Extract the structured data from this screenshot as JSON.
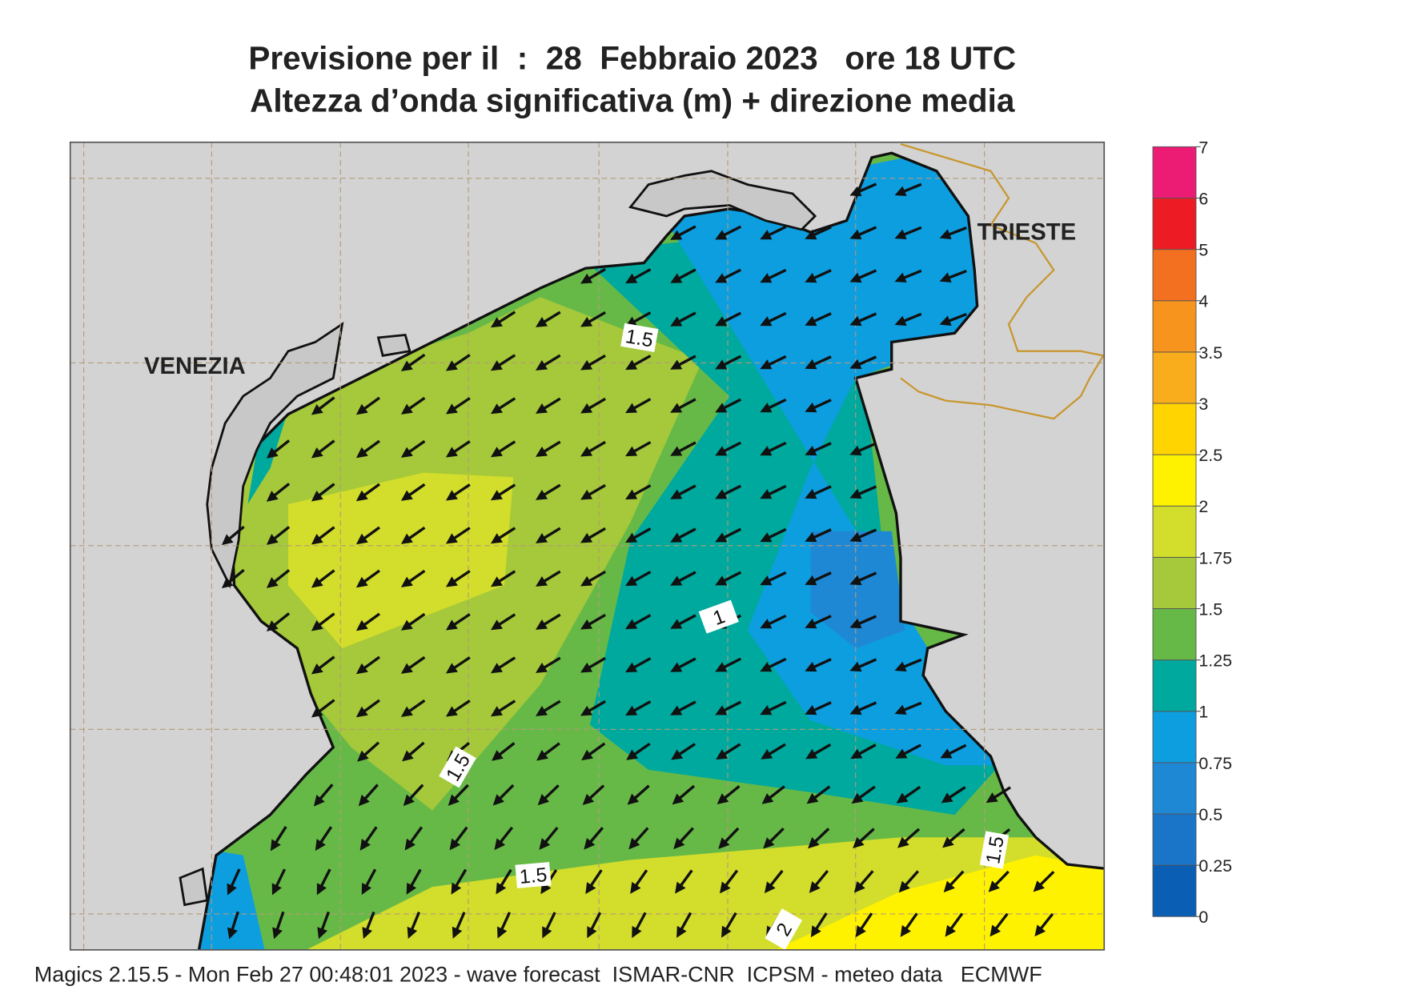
{
  "header": {
    "title": "Previsione per il  :  28  Febbraio 2023   ore 18 UTC",
    "subtitle": "Altezza d’onda significativa (m) + direzione media"
  },
  "map": {
    "places": [
      "VENEZIA",
      "TRIESTE"
    ],
    "contour_labels": [
      "1.5",
      "1.5",
      "1.5",
      "1.5",
      "2",
      "1"
    ]
  },
  "colorbar": {
    "levels": [
      0,
      0.25,
      0.5,
      0.75,
      1,
      1.25,
      1.5,
      1.75,
      2,
      2.5,
      3,
      3.5,
      4,
      5,
      6,
      7
    ],
    "colors": [
      "#0a5eb4",
      "#1a74c8",
      "#1f88d4",
      "#0d9ee0",
      "#00a99d",
      "#67b947",
      "#a5c93a",
      "#d3dd2b",
      "#fff200",
      "#ffd400",
      "#f9ad1d",
      "#f7941d",
      "#f37021",
      "#ed1c24",
      "#ec1c74"
    ]
  },
  "footer": "Magics 2.15.5 - Mon Feb 27 00:48:01 2023 - wave forecast  ISMAR-CNR  ICPSM - meteo data   ECMWF"
}
